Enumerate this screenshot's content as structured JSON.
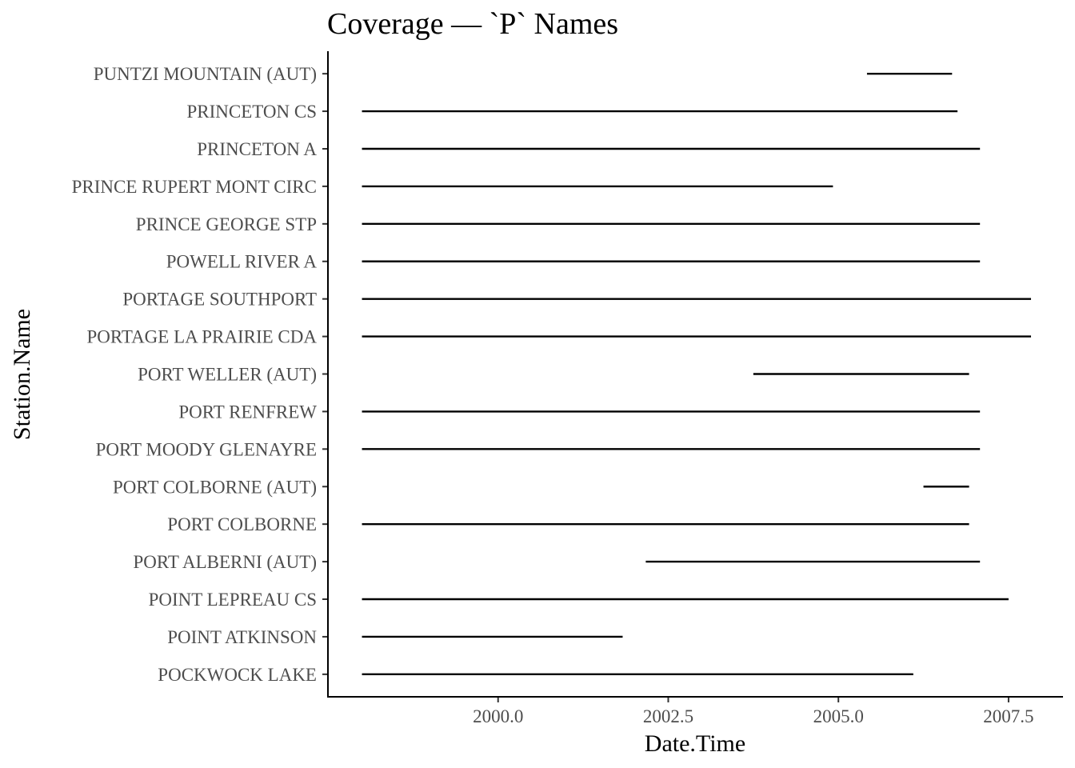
{
  "chart_data": {
    "type": "segment",
    "title": "Coverage — `P` Names",
    "xlabel": "Date.Time",
    "ylabel": "Station.Name",
    "xlim": [
      1997.5,
      2008.3
    ],
    "x_ticks": [
      2000.0,
      2002.5,
      2005.0,
      2007.5
    ],
    "x_tick_labels": [
      "2000.0",
      "2002.5",
      "2005.0",
      "2007.5"
    ],
    "grid": false,
    "legend": "none",
    "line_color": "#000000",
    "stations": [
      {
        "name": "POCKWOCK LAKE",
        "start": 1998.0,
        "end": 2006.1
      },
      {
        "name": "POINT ATKINSON",
        "start": 1998.0,
        "end": 2001.83
      },
      {
        "name": "POINT LEPREAU CS",
        "start": 1998.0,
        "end": 2007.5
      },
      {
        "name": "PORT ALBERNI (AUT)",
        "start": 2002.17,
        "end": 2007.08
      },
      {
        "name": "PORT COLBORNE",
        "start": 1998.0,
        "end": 2006.92
      },
      {
        "name": "PORT COLBORNE (AUT)",
        "start": 2006.25,
        "end": 2006.92
      },
      {
        "name": "PORT MOODY GLENAYRE",
        "start": 1998.0,
        "end": 2007.08
      },
      {
        "name": "PORT RENFREW",
        "start": 1998.0,
        "end": 2007.08
      },
      {
        "name": "PORT WELLER (AUT)",
        "start": 2003.75,
        "end": 2006.92
      },
      {
        "name": "PORTAGE LA PRAIRIE CDA",
        "start": 1998.0,
        "end": 2007.83
      },
      {
        "name": "PORTAGE SOUTHPORT",
        "start": 1998.0,
        "end": 2007.83
      },
      {
        "name": "POWELL RIVER A",
        "start": 1998.0,
        "end": 2007.08
      },
      {
        "name": "PRINCE GEORGE STP",
        "start": 1998.0,
        "end": 2007.08
      },
      {
        "name": "PRINCE RUPERT MONT CIRC",
        "start": 1998.0,
        "end": 2004.92
      },
      {
        "name": "PRINCETON A",
        "start": 1998.0,
        "end": 2007.08
      },
      {
        "name": "PRINCETON CS",
        "start": 1998.0,
        "end": 2006.75
      },
      {
        "name": "PUNTZI MOUNTAIN (AUT)",
        "start": 2005.42,
        "end": 2006.67
      }
    ]
  }
}
